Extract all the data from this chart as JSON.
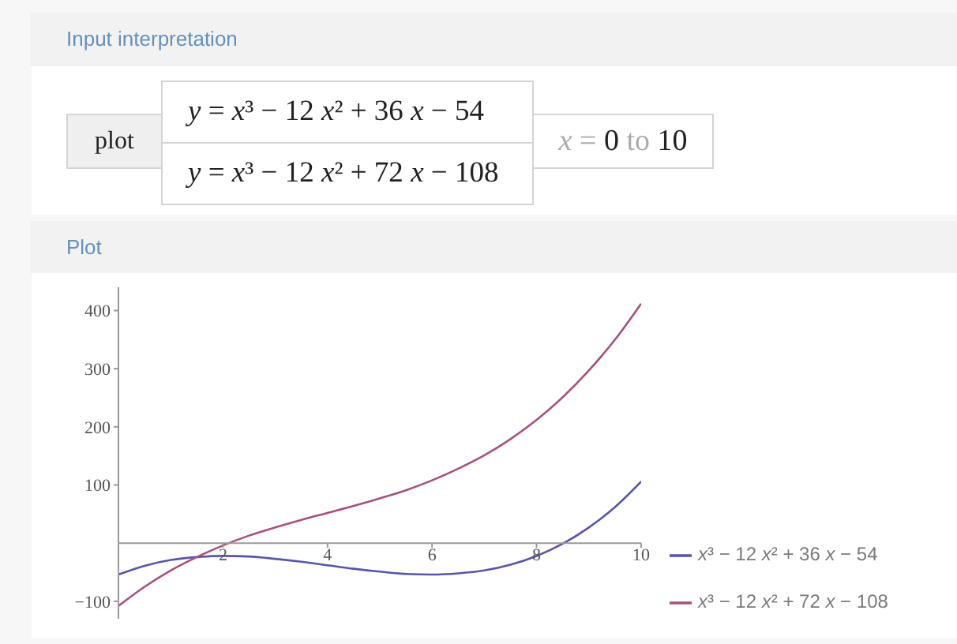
{
  "chart_data": {
    "type": "line",
    "title": "Plot",
    "annotations": [
      "Input interpretation",
      "plot",
      "y = x³ − 12 x² + 36 x − 54",
      "y = x³ − 12 x² + 72 x − 108",
      "x = 0 to 10"
    ],
    "x": [
      0,
      0.5,
      1,
      1.5,
      2,
      2.5,
      3,
      3.5,
      4,
      4.5,
      5,
      5.5,
      6,
      6.5,
      7,
      7.5,
      8,
      8.5,
      9,
      9.5,
      10
    ],
    "series": [
      {
        "name": "x³ − 12 x² + 36 x − 54",
        "color": "#5656a8",
        "values": [
          -54,
          -39,
          -29,
          -24,
          -22,
          -23,
          -27,
          -32,
          -38,
          -44,
          -49,
          -53,
          -54,
          -52,
          -47,
          -37,
          -22,
          -1,
          27,
          62,
          106
        ]
      },
      {
        "name": "x³ − 12 x² + 72 x − 108",
        "color": "#a8507c",
        "values": [
          -108,
          -75,
          -47,
          -24,
          -4,
          13,
          27,
          40,
          52,
          64,
          77,
          91,
          108,
          128,
          151,
          179,
          212,
          251,
          297,
          350,
          412
        ]
      }
    ],
    "xlim": [
      0,
      10
    ],
    "xticks": [
      2,
      4,
      6,
      8,
      10
    ],
    "ylim": [
      -130,
      440
    ],
    "yticks": [
      -100,
      100,
      200,
      300,
      400
    ],
    "legend": "bottom right"
  }
}
